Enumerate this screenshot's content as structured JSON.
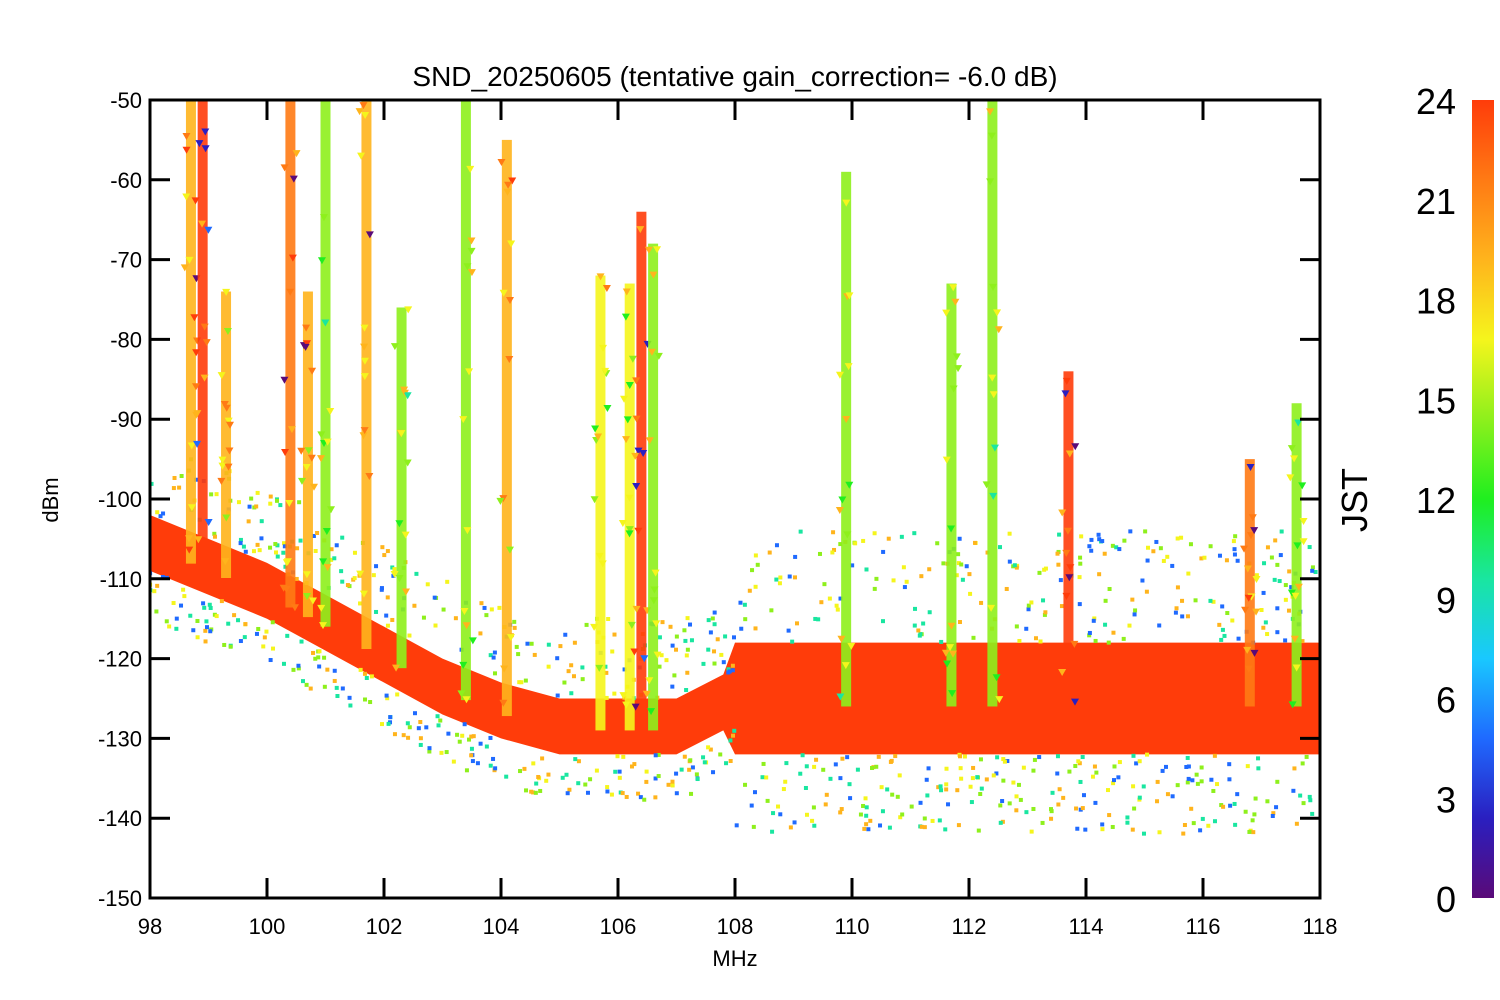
{
  "chart_data": {
    "type": "scatter",
    "title": "SND_20250605 (tentative gain_correction= -6.0 dB)",
    "xlabel": "MHz",
    "ylabel": "dBm",
    "xlim": [
      98,
      118
    ],
    "ylim": [
      -150,
      -50
    ],
    "x_ticks": [
      "98",
      "100",
      "102",
      "104",
      "106",
      "108",
      "110",
      "112",
      "114",
      "116",
      "118"
    ],
    "y_ticks": [
      "-50",
      "-60",
      "-70",
      "-80",
      "-90",
      "-100",
      "-110",
      "-120",
      "-130",
      "-140",
      "-150"
    ],
    "colorbar": {
      "label": "JST",
      "range": [
        0,
        24
      ],
      "ticks": [
        "24",
        "21",
        "18",
        "15",
        "12",
        "9",
        "6",
        "3",
        "0"
      ],
      "colormap": [
        "#5a0a78",
        "#2a1fc0",
        "#1f6aff",
        "#19c8ff",
        "#19e6a0",
        "#1fef1f",
        "#8ef01c",
        "#f5f51c",
        "#ffb41c",
        "#ff7a14",
        "#ff3c0a"
      ]
    },
    "noise_floor": [
      {
        "x": 98,
        "y": -106
      },
      {
        "x": 99,
        "y": -109
      },
      {
        "x": 100,
        "y": -112
      },
      {
        "x": 101,
        "y": -116
      },
      {
        "x": 102,
        "y": -120
      },
      {
        "x": 103,
        "y": -124
      },
      {
        "x": 104,
        "y": -127
      },
      {
        "x": 105,
        "y": -129
      },
      {
        "x": 106,
        "y": -129
      },
      {
        "x": 107,
        "y": -129
      },
      {
        "x": 107.8,
        "y": -126
      },
      {
        "x": 108,
        "y": -126
      },
      {
        "x": 110,
        "y": -126
      },
      {
        "x": 112,
        "y": -126
      },
      {
        "x": 114,
        "y": -126
      },
      {
        "x": 116,
        "y": -126
      },
      {
        "x": 118,
        "y": -126
      }
    ],
    "signals": [
      {
        "freq": 98.7,
        "top_dbm": -50,
        "hour": 20
      },
      {
        "freq": 98.9,
        "top_dbm": -50,
        "hour": 23
      },
      {
        "freq": 99.3,
        "top_dbm": -74,
        "hour": 19
      },
      {
        "freq": 100.4,
        "top_dbm": -50,
        "hour": 21
      },
      {
        "freq": 100.7,
        "top_dbm": -74,
        "hour": 20
      },
      {
        "freq": 101.0,
        "top_dbm": -50,
        "hour": 15
      },
      {
        "freq": 101.7,
        "top_dbm": -50,
        "hour": 20
      },
      {
        "freq": 102.3,
        "top_dbm": -76,
        "hour": 15
      },
      {
        "freq": 103.4,
        "top_dbm": -50,
        "hour": 15
      },
      {
        "freq": 104.1,
        "top_dbm": -55,
        "hour": 20
      },
      {
        "freq": 105.7,
        "top_dbm": -72,
        "hour": 16
      },
      {
        "freq": 106.2,
        "top_dbm": -73,
        "hour": 16
      },
      {
        "freq": 106.4,
        "top_dbm": -64,
        "hour": 23
      },
      {
        "freq": 106.6,
        "top_dbm": -68,
        "hour": 15
      },
      {
        "freq": 109.9,
        "top_dbm": -59,
        "hour": 15
      },
      {
        "freq": 111.7,
        "top_dbm": -73,
        "hour": 15
      },
      {
        "freq": 112.4,
        "top_dbm": -50,
        "hour": 15
      },
      {
        "freq": 113.7,
        "top_dbm": -84,
        "hour": 23
      },
      {
        "freq": 116.8,
        "top_dbm": -95,
        "hour": 21
      },
      {
        "freq": 117.6,
        "top_dbm": -88,
        "hour": 15
      }
    ]
  }
}
